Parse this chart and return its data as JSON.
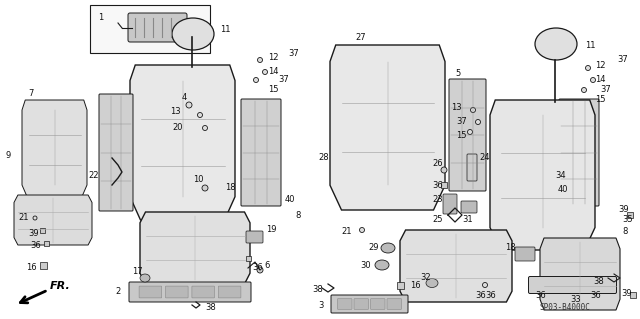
{
  "bg_color": "#ffffff",
  "diagram_code": "SP03-B4000C",
  "figsize": [
    6.4,
    3.19
  ],
  "dpi": 100,
  "line_color": "#1a1a1a",
  "fill_light": "#e8e8e8",
  "fill_mid": "#d0d0d0",
  "fill_dark": "#b8b8b8",
  "font_size": 6.0,
  "text_color": "#111111"
}
